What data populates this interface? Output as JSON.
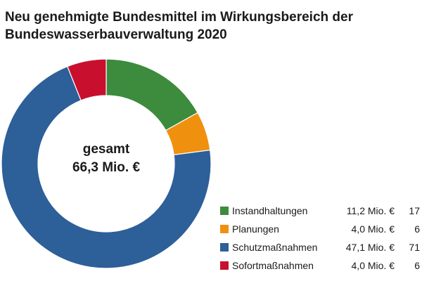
{
  "title_lines": [
    "Neu genehmigte Bundesmittel im Wirkungsbereich der",
    "Bundeswasserbauverwaltung 2020"
  ],
  "center_lines": [
    "gesamt",
    "66,3 Mio. €"
  ],
  "chart_data": {
    "type": "pie",
    "title": "Neu genehmigte Bundesmittel im Wirkungsbereich der Bundeswasserbauverwaltung 2020",
    "total_label": "66,3 Mio. €",
    "total": 66.3,
    "series": [
      {
        "name": "Instandhaltungen",
        "value": 11.2,
        "value_label": "11,2 Mio. €",
        "percent_label": "17",
        "color": "#3d8b3d"
      },
      {
        "name": "Planungen",
        "value": 4.0,
        "value_label": "4,0 Mio. €",
        "percent_label": "6",
        "color": "#f0900f"
      },
      {
        "name": "Schutzmaßnahmen",
        "value": 47.1,
        "value_label": "47,1 Mio. €",
        "percent_label": "71",
        "color": "#2d5f99"
      },
      {
        "name": "Sofortmaßnahmen",
        "value": 4.0,
        "value_label": "4,0 Mio. €",
        "percent_label": "6",
        "color": "#c8102e"
      }
    ],
    "legend_position": "bottom-right"
  }
}
